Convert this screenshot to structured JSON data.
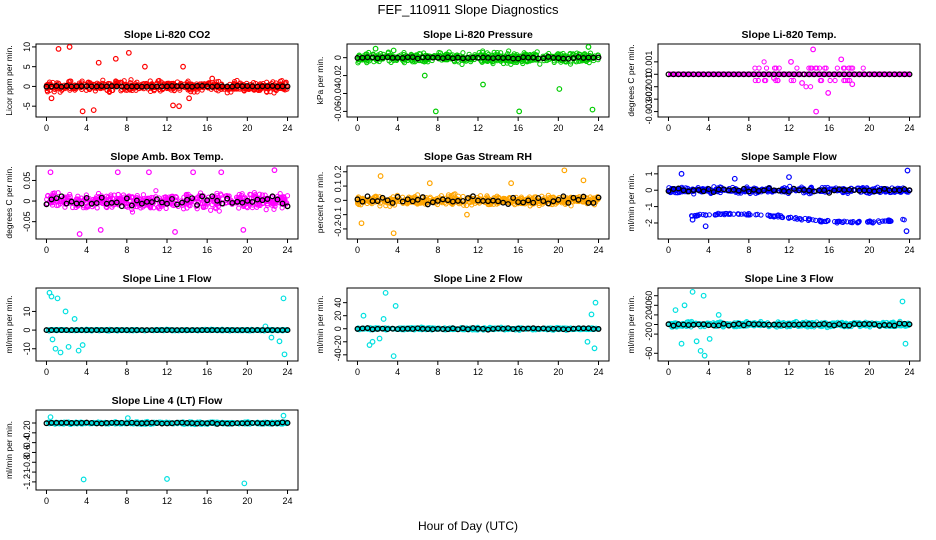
{
  "figure": {
    "title": "FEF_110911  Slope Diagnostics",
    "xlabel": "Hour of Day (UTC)"
  },
  "chart_data": [
    {
      "type": "scatter",
      "title": "Slope Li-820 CO2",
      "ylabel": "Licor ppm per min.",
      "xlim": [
        0,
        24
      ],
      "ylim": [
        -7,
        10
      ],
      "xticks": [
        "0",
        "4",
        "8",
        "12",
        "16",
        "20",
        "24"
      ],
      "yticks": [
        -5,
        0,
        5,
        10
      ],
      "color": "#ff0000",
      "spread": 2.2,
      "black_spread": 0.25,
      "points": [
        [
          1.2,
          9.5
        ],
        [
          2.3,
          10
        ],
        [
          3.6,
          -6.3
        ],
        [
          4.7,
          -6
        ],
        [
          5.2,
          6
        ],
        [
          6.9,
          7
        ],
        [
          8.2,
          8.5
        ],
        [
          9.8,
          5
        ],
        [
          12.6,
          -4.8
        ],
        [
          13.2,
          -5
        ],
        [
          13.6,
          5
        ],
        [
          14.2,
          -3
        ],
        [
          16.5,
          2
        ],
        [
          0.5,
          -3
        ]
      ]
    },
    {
      "type": "scatter",
      "title": "Slope Li-820 Pressure",
      "ylabel": "kPa per min.",
      "xlim": [
        0,
        24
      ],
      "ylim": [
        -0.063,
        0.012
      ],
      "xticks": [
        "0",
        "4",
        "8",
        "12",
        "16",
        "20",
        "24"
      ],
      "yticks": [
        -0.06,
        -0.04,
        -0.02,
        0
      ],
      "color": "#00cc00",
      "spread": 0.01,
      "black_spread": 0.002,
      "points": [
        [
          1.8,
          0.01
        ],
        [
          3.6,
          0.008
        ],
        [
          6.7,
          -0.02
        ],
        [
          7.8,
          -0.06
        ],
        [
          16.1,
          -0.06
        ],
        [
          23.4,
          -0.058
        ],
        [
          23.0,
          0.012
        ],
        [
          12.5,
          -0.03
        ],
        [
          20.1,
          -0.035
        ]
      ]
    },
    {
      "type": "scatter",
      "title": "Slope Li-820 Temp.",
      "ylabel": "degrees C per min.",
      "xlim": [
        0,
        24
      ],
      "ylim": [
        -0.0032,
        0.0022
      ],
      "xticks": [
        "0",
        "4",
        "8",
        "12",
        "16",
        "20",
        "24"
      ],
      "yticks": [
        -0.003,
        -0.002,
        -0.001,
        0,
        0.001
      ],
      "color": "#ff00ff",
      "spread": 0,
      "black_spread": 0,
      "points": [
        [
          14.7,
          -0.003
        ],
        [
          14.4,
          0.002
        ],
        [
          12.2,
          0.001
        ],
        [
          10.5,
          -0.0003
        ],
        [
          17.2,
          0.0012
        ],
        [
          15.9,
          -0.0015
        ],
        [
          13.3,
          -0.0007
        ],
        [
          18.3,
          -0.0008
        ]
      ]
    },
    {
      "type": "scatter",
      "title": "Slope Amb. Box Temp.",
      "ylabel": "degrees C per min.",
      "xlim": [
        0,
        24
      ],
      "ylim": [
        -0.085,
        0.078
      ],
      "xticks": [
        "0",
        "4",
        "8",
        "12",
        "16",
        "20",
        "24"
      ],
      "yticks": [
        -0.05,
        0,
        0.05
      ],
      "color": "#ff00ff",
      "spread": 0.032,
      "black_spread": 0.025,
      "points": [
        [
          0.4,
          0.07
        ],
        [
          3.3,
          -0.08
        ],
        [
          7.1,
          0.07
        ],
        [
          10.2,
          0.07
        ],
        [
          14.6,
          0.07
        ],
        [
          17.4,
          0.07
        ],
        [
          22.7,
          0.075
        ],
        [
          5.4,
          -0.07
        ],
        [
          12.8,
          -0.075
        ],
        [
          19.6,
          -0.07
        ]
      ]
    },
    {
      "type": "scatter",
      "title": "Slope Gas Stream RH",
      "ylabel": "percent per min.",
      "xlim": [
        0,
        24
      ],
      "ylim": [
        -0.25,
        0.22
      ],
      "xticks": [
        "0",
        "4",
        "8",
        "12",
        "16",
        "20",
        "24"
      ],
      "yticks": [
        -0.2,
        -0.1,
        0,
        0.1,
        0.2
      ],
      "color": "#ffa500",
      "spread": 0.055,
      "black_spread": 0.05,
      "points": [
        [
          3.6,
          -0.23
        ],
        [
          20.6,
          0.21
        ],
        [
          0.4,
          -0.16
        ],
        [
          2.3,
          0.17
        ],
        [
          7.2,
          0.12
        ],
        [
          10.9,
          -0.1
        ],
        [
          15.3,
          0.12
        ],
        [
          22.5,
          0.14
        ]
      ]
    },
    {
      "type": "scatter",
      "title": "Slope Sample Flow",
      "ylabel": "ml/min per min.",
      "xlim": [
        0,
        24
      ],
      "ylim": [
        -2.8,
        1.3
      ],
      "xticks": [
        "0",
        "4",
        "8",
        "12",
        "16",
        "20",
        "24"
      ],
      "yticks": [
        -2,
        -1,
        0,
        1
      ],
      "color": "#0000ff",
      "spread": 0.3,
      "black_spread": 0.2,
      "band2": -1.7,
      "points": [
        [
          1.3,
          1.0
        ],
        [
          2.4,
          -1.8
        ],
        [
          3.7,
          -2.2
        ],
        [
          23.8,
          1.2
        ],
        [
          23.7,
          -2.5
        ],
        [
          12.0,
          0.8
        ],
        [
          6.6,
          0.7
        ]
      ]
    },
    {
      "type": "scatter",
      "title": "Slope Line 1 Flow",
      "ylabel": "ml/min per min.",
      "xlim": [
        0,
        24
      ],
      "ylim": [
        -15,
        21
      ],
      "xticks": [
        "0",
        "4",
        "8",
        "12",
        "16",
        "20",
        "24"
      ],
      "yticks": [
        -10,
        0,
        10
      ],
      "color": "#00e0e0",
      "spread": 0.6,
      "black_spread": 0,
      "points": [
        [
          0.3,
          20
        ],
        [
          0.5,
          18
        ],
        [
          1.1,
          17
        ],
        [
          1.4,
          -12
        ],
        [
          2.2,
          -9
        ],
        [
          0.6,
          -5
        ],
        [
          3.6,
          -8
        ],
        [
          2.8,
          6
        ],
        [
          1.9,
          10
        ],
        [
          0.9,
          -10
        ],
        [
          23.6,
          17
        ],
        [
          23.7,
          -13
        ],
        [
          23.2,
          -6
        ],
        [
          22.4,
          -4
        ],
        [
          21.8,
          2
        ],
        [
          3.2,
          -11
        ]
      ]
    },
    {
      "type": "scatter",
      "title": "Slope Line 2 Flow",
      "ylabel": "ml/min per min.",
      "xlim": [
        0,
        24
      ],
      "ylim": [
        -45,
        58
      ],
      "xticks": [
        "0",
        "4",
        "8",
        "12",
        "16",
        "20",
        "24"
      ],
      "yticks": [
        -40,
        -20,
        0,
        20,
        40
      ],
      "color": "#00e0e0",
      "spread": 3,
      "black_spread": 2,
      "points": [
        [
          2.8,
          55
        ],
        [
          3.6,
          -42
        ],
        [
          3.8,
          35
        ],
        [
          0.6,
          20
        ],
        [
          1.5,
          -20
        ],
        [
          2.2,
          -15
        ],
        [
          23.7,
          40
        ],
        [
          23.6,
          -30
        ],
        [
          22.9,
          -20
        ],
        [
          23.3,
          22
        ],
        [
          2.6,
          15
        ],
        [
          1.2,
          -25
        ]
      ]
    },
    {
      "type": "scatter",
      "title": "Slope Line 3 Flow",
      "ylabel": "ml/min per min.",
      "xlim": [
        0,
        24
      ],
      "ylim": [
        -70,
        70
      ],
      "xticks": [
        "0",
        "4",
        "8",
        "12",
        "16",
        "20",
        "24"
      ],
      "yticks": [
        -60,
        -20,
        0,
        20,
        40,
        60
      ],
      "color": "#00e0e0",
      "spread": 8,
      "black_spread": 4,
      "points": [
        [
          2.4,
          68
        ],
        [
          3.5,
          60
        ],
        [
          3.6,
          -65
        ],
        [
          3.2,
          -55
        ],
        [
          1.3,
          -40
        ],
        [
          0.7,
          30
        ],
        [
          2.8,
          -35
        ],
        [
          23.3,
          48
        ],
        [
          23.6,
          -40
        ],
        [
          4.1,
          -30
        ],
        [
          5.0,
          20
        ],
        [
          1.6,
          40
        ]
      ]
    },
    {
      "type": "scatter",
      "title": "Slope Line 4 (LT) Flow",
      "ylabel": "ml/min per min.",
      "xlim": [
        0,
        24
      ],
      "ylim": [
        -1.3,
        0.2
      ],
      "xticks": [
        "0",
        "4",
        "8",
        "12",
        "16",
        "20",
        "24"
      ],
      "yticks": [
        -1.2,
        -1,
        -0.8,
        -0.6,
        -0.4,
        -0.2,
        0
      ],
      "color": "#00e0e0",
      "spread": 0.04,
      "black_spread": 0.02,
      "points": [
        [
          3.7,
          -1.15
        ],
        [
          12.0,
          -1.14
        ],
        [
          19.7,
          -1.23
        ],
        [
          0.4,
          0.12
        ],
        [
          23.6,
          0.15
        ],
        [
          8.1,
          0.1
        ]
      ]
    }
  ]
}
